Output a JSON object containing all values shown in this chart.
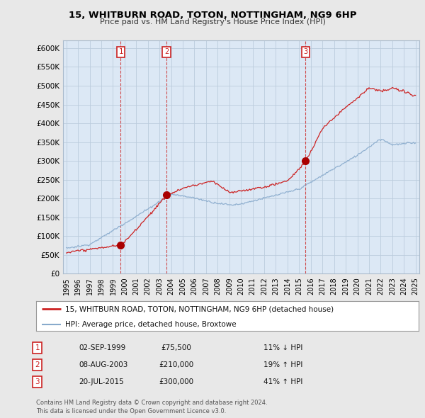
{
  "title": "15, WHITBURN ROAD, TOTON, NOTTINGHAM, NG9 6HP",
  "subtitle": "Price paid vs. HM Land Registry's House Price Index (HPI)",
  "ylabel_ticks": [
    "£0",
    "£50K",
    "£100K",
    "£150K",
    "£200K",
    "£250K",
    "£300K",
    "£350K",
    "£400K",
    "£450K",
    "£500K",
    "£550K",
    "£600K"
  ],
  "ytick_values": [
    0,
    50000,
    100000,
    150000,
    200000,
    250000,
    300000,
    350000,
    400000,
    450000,
    500000,
    550000,
    600000
  ],
  "ylim": [
    0,
    620000
  ],
  "xlim_start": 1994.7,
  "xlim_end": 2025.3,
  "xticks": [
    1995,
    1996,
    1997,
    1998,
    1999,
    2000,
    2001,
    2002,
    2003,
    2004,
    2005,
    2006,
    2007,
    2008,
    2009,
    2010,
    2011,
    2012,
    2013,
    2014,
    2015,
    2016,
    2017,
    2018,
    2019,
    2020,
    2021,
    2022,
    2023,
    2024,
    2025
  ],
  "sale_dates": [
    1999.67,
    2003.6,
    2015.55
  ],
  "sale_prices": [
    75500,
    210000,
    300000
  ],
  "sale_labels": [
    "1",
    "2",
    "3"
  ],
  "legend_line1": "15, WHITBURN ROAD, TOTON, NOTTINGHAM, NG9 6HP (detached house)",
  "legend_line2": "HPI: Average price, detached house, Broxtowe",
  "table_rows": [
    [
      "1",
      "02-SEP-1999",
      "£75,500",
      "11% ↓ HPI"
    ],
    [
      "2",
      "08-AUG-2003",
      "£210,000",
      "19% ↑ HPI"
    ],
    [
      "3",
      "20-JUL-2015",
      "£300,000",
      "41% ↑ HPI"
    ]
  ],
  "footnote": "Contains HM Land Registry data © Crown copyright and database right 2024.\nThis data is licensed under the Open Government Licence v3.0.",
  "red_line_color": "#cc2222",
  "blue_line_color": "#88aacc",
  "grid_color": "#cccccc",
  "bg_color": "#e8e8e8",
  "plot_bg_color": "#dce8f5",
  "vline_color": "#cc2222",
  "marker_color": "#aa0000",
  "box_color": "#cc2222",
  "shade_color": "#dce8f5"
}
